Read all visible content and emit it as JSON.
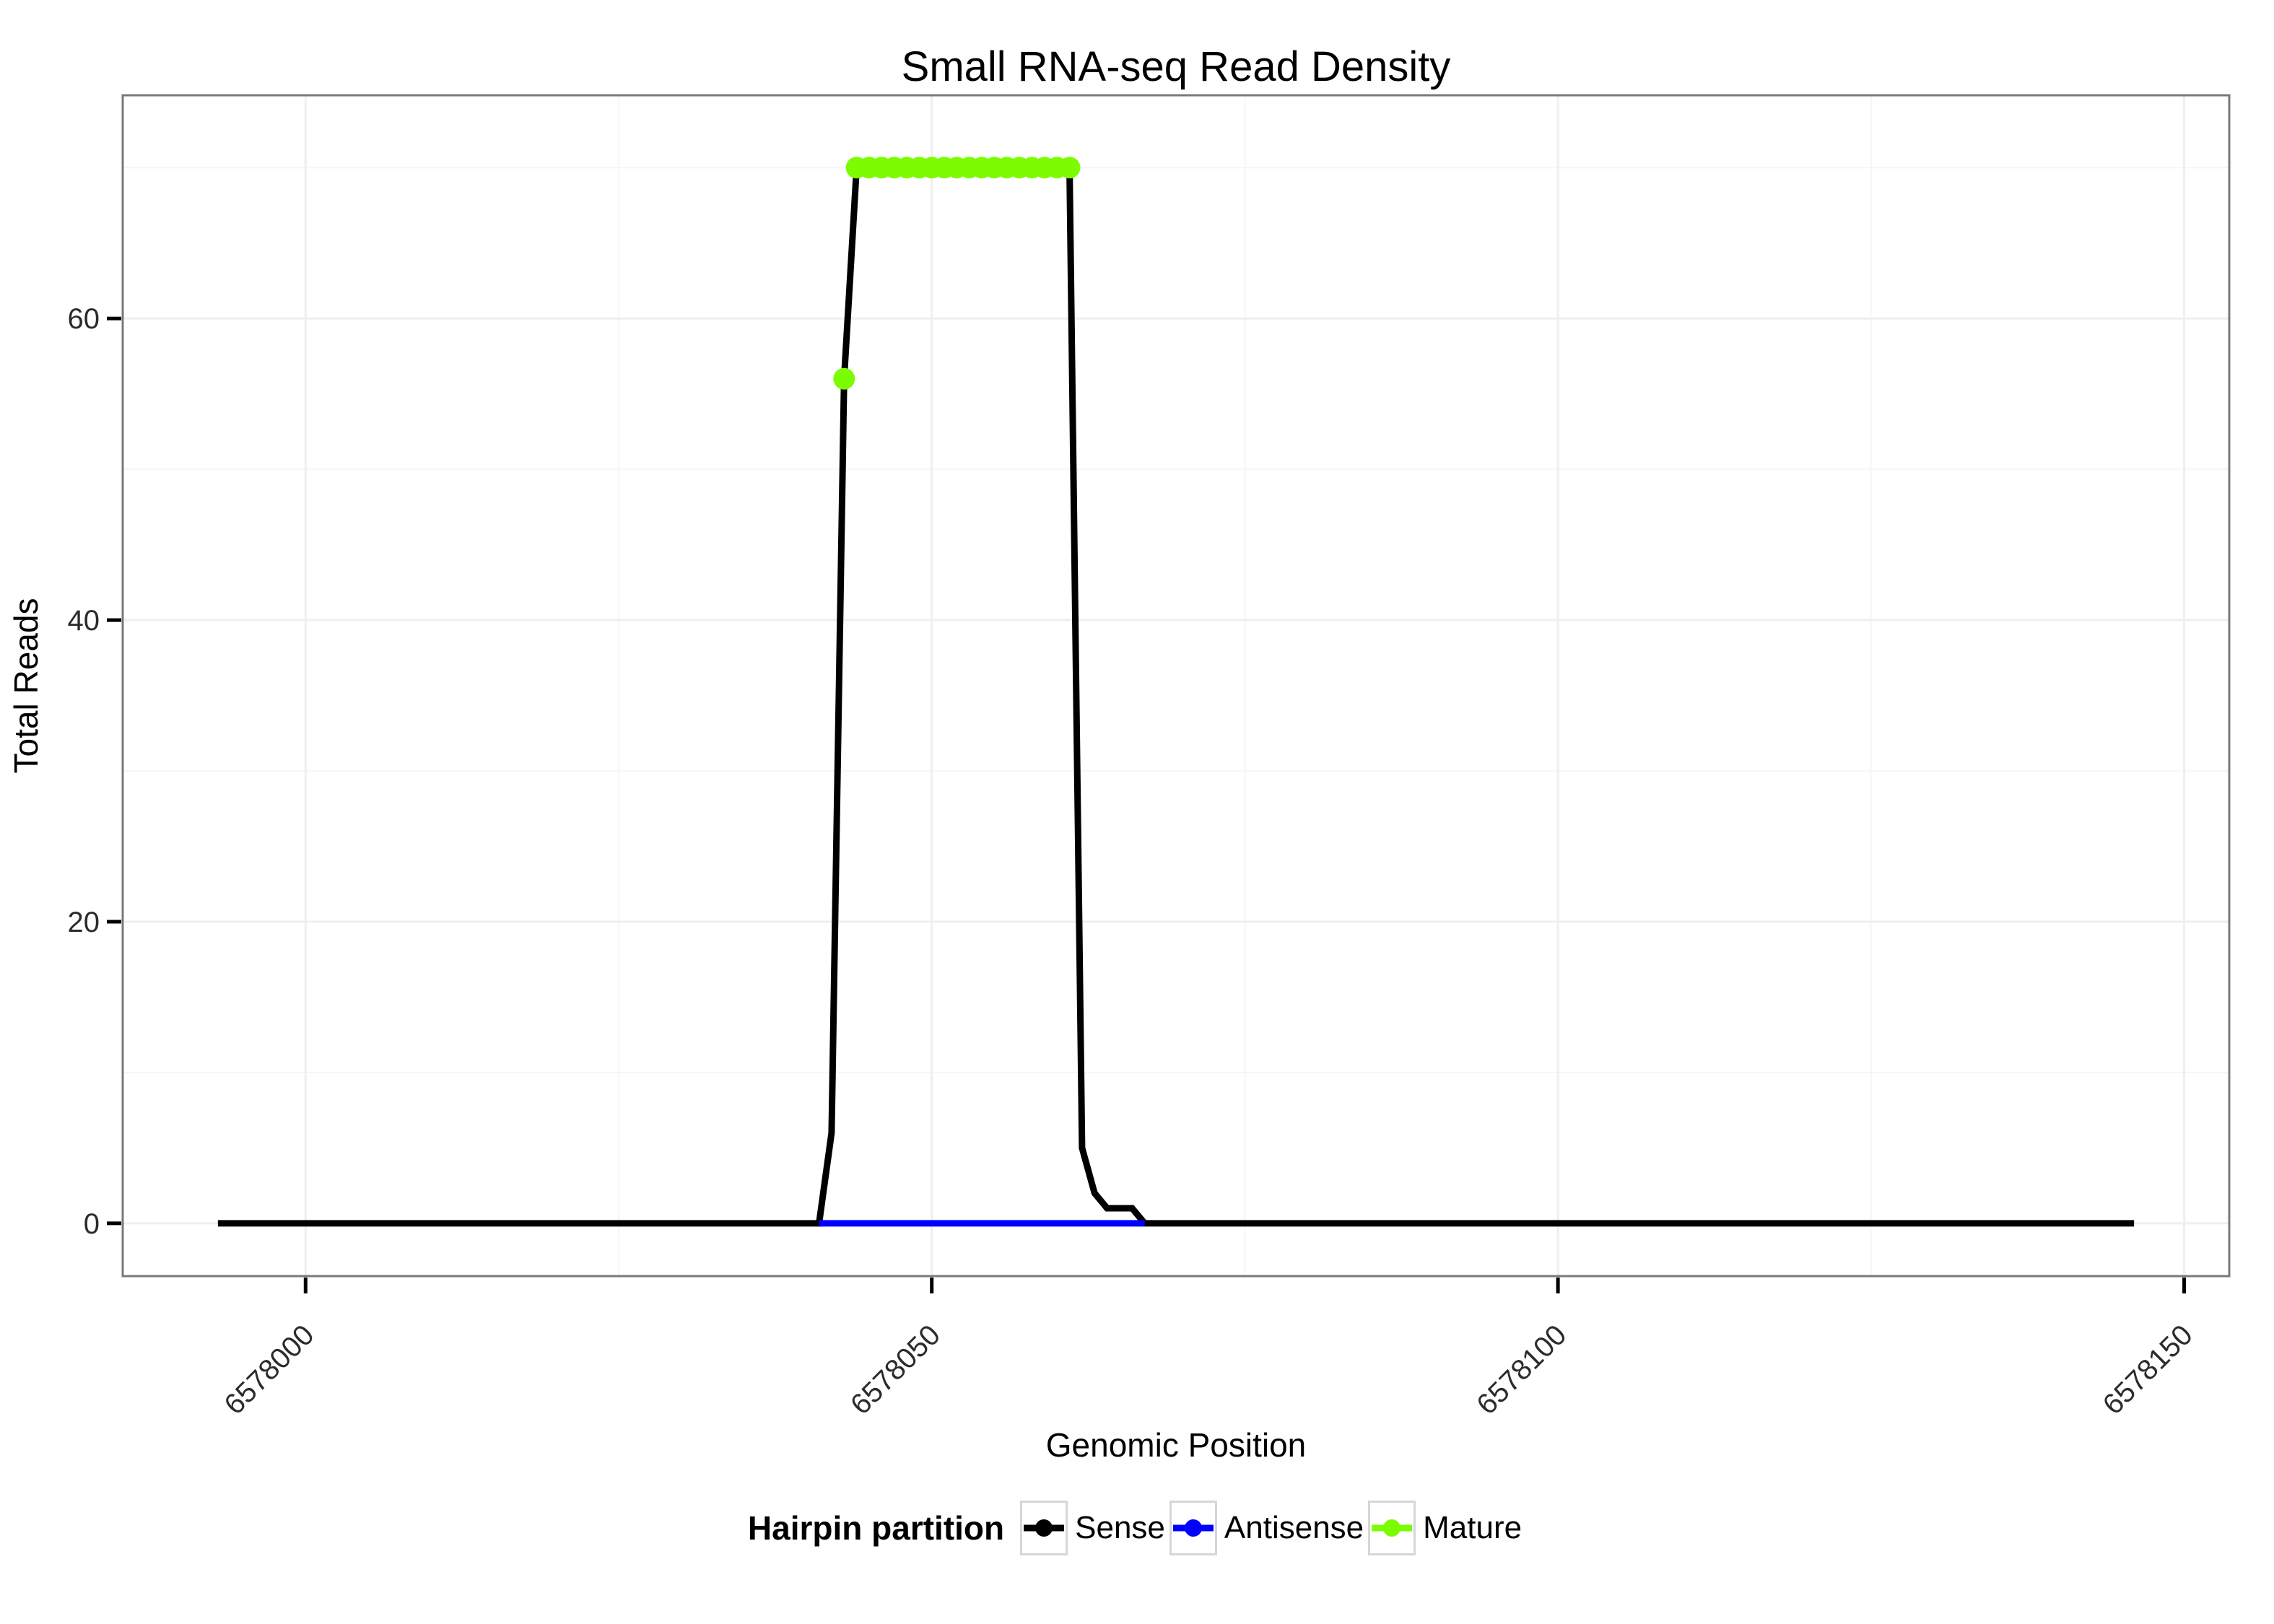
{
  "title": "Small RNA-seq Read Density",
  "legend": {
    "title": "Hairpin partition",
    "items": [
      {
        "label": "Sense",
        "color": "#000000"
      },
      {
        "label": "Antisense",
        "color": "#0000ff"
      },
      {
        "label": "Mature",
        "color": "#7cfc00"
      }
    ]
  },
  "chart_data": {
    "type": "line",
    "title": "Small RNA-seq Read Density",
    "xlabel": "Genomic Position",
    "ylabel": "Total Reads",
    "x_ticks": [
      6578000,
      6578050,
      6578100,
      6578150
    ],
    "x_minor_ticks": [
      6578025,
      6578075,
      6578125
    ],
    "y_ticks": [
      0,
      20,
      40,
      60
    ],
    "y_minor_ticks": [
      10,
      30,
      50,
      70
    ],
    "xlim": [
      6577985.4,
      6578153.6
    ],
    "ylim": [
      -3.5,
      74.8
    ],
    "grid": "on",
    "legend_position": "bottom",
    "series": [
      {
        "name": "Sense",
        "color": "#000000",
        "style": "line",
        "points": [
          [
            6577993,
            0
          ],
          [
            6578041,
            0
          ],
          [
            6578042,
            6
          ],
          [
            6578043,
            56
          ],
          [
            6578044,
            70
          ],
          [
            6578061,
            70
          ],
          [
            6578062,
            5
          ],
          [
            6578063,
            2
          ],
          [
            6578064,
            1
          ],
          [
            6578066,
            1
          ],
          [
            6578067,
            0
          ],
          [
            6578146,
            0
          ]
        ]
      },
      {
        "name": "Antisense",
        "color": "#0000ff",
        "style": "line",
        "points": [
          [
            6578041,
            0
          ],
          [
            6578067,
            0
          ]
        ]
      },
      {
        "name": "Mature",
        "color": "#7cfc00",
        "style": "points",
        "points": [
          [
            6578043,
            56
          ],
          [
            6578044,
            70
          ],
          [
            6578045,
            70
          ],
          [
            6578046,
            70
          ],
          [
            6578047,
            70
          ],
          [
            6578048,
            70
          ],
          [
            6578049,
            70
          ],
          [
            6578050,
            70
          ],
          [
            6578051,
            70
          ],
          [
            6578052,
            70
          ],
          [
            6578053,
            70
          ],
          [
            6578054,
            70
          ],
          [
            6578055,
            70
          ],
          [
            6578056,
            70
          ],
          [
            6578057,
            70
          ],
          [
            6578058,
            70
          ],
          [
            6578059,
            70
          ],
          [
            6578060,
            70
          ],
          [
            6578061,
            70
          ]
        ]
      }
    ]
  }
}
